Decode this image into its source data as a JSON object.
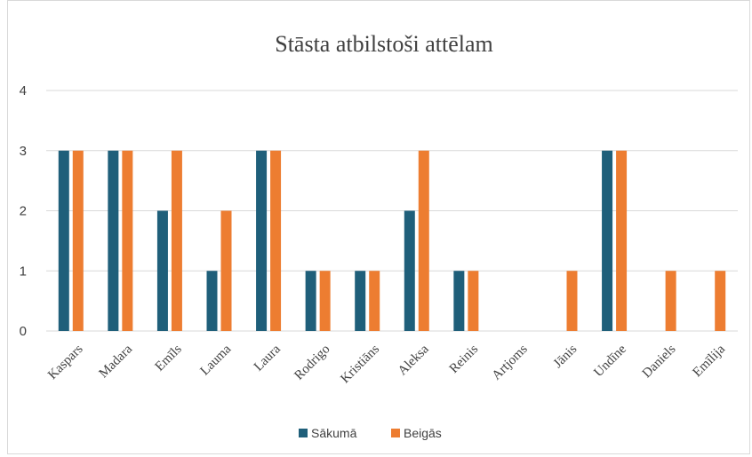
{
  "chart_data": {
    "type": "bar",
    "title": "Stāsta atbilstoši attēlam",
    "categories": [
      "Kaspars",
      "Madara",
      "Emīls",
      "Lauma",
      "Laura",
      "Rodrigo",
      "Kristiāns",
      "Aleksa",
      "Reinis",
      "Artjoms",
      "Jānis",
      "Undīne",
      "Daniels",
      "Emīlija"
    ],
    "series": [
      {
        "name": "Sākumā",
        "color": "#1f5f7a",
        "values": [
          3,
          3,
          2,
          1,
          3,
          1,
          1,
          2,
          1,
          0,
          0,
          3,
          0,
          0
        ]
      },
      {
        "name": "Beigās",
        "color": "#ed7d31",
        "values": [
          3,
          3,
          3,
          2,
          3,
          1,
          1,
          3,
          1,
          0,
          1,
          3,
          1,
          1
        ]
      }
    ],
    "ylim": [
      0,
      4
    ],
    "yticks": [
      0,
      1,
      2,
      3,
      4
    ],
    "grid": true,
    "legend_position": "bottom"
  }
}
